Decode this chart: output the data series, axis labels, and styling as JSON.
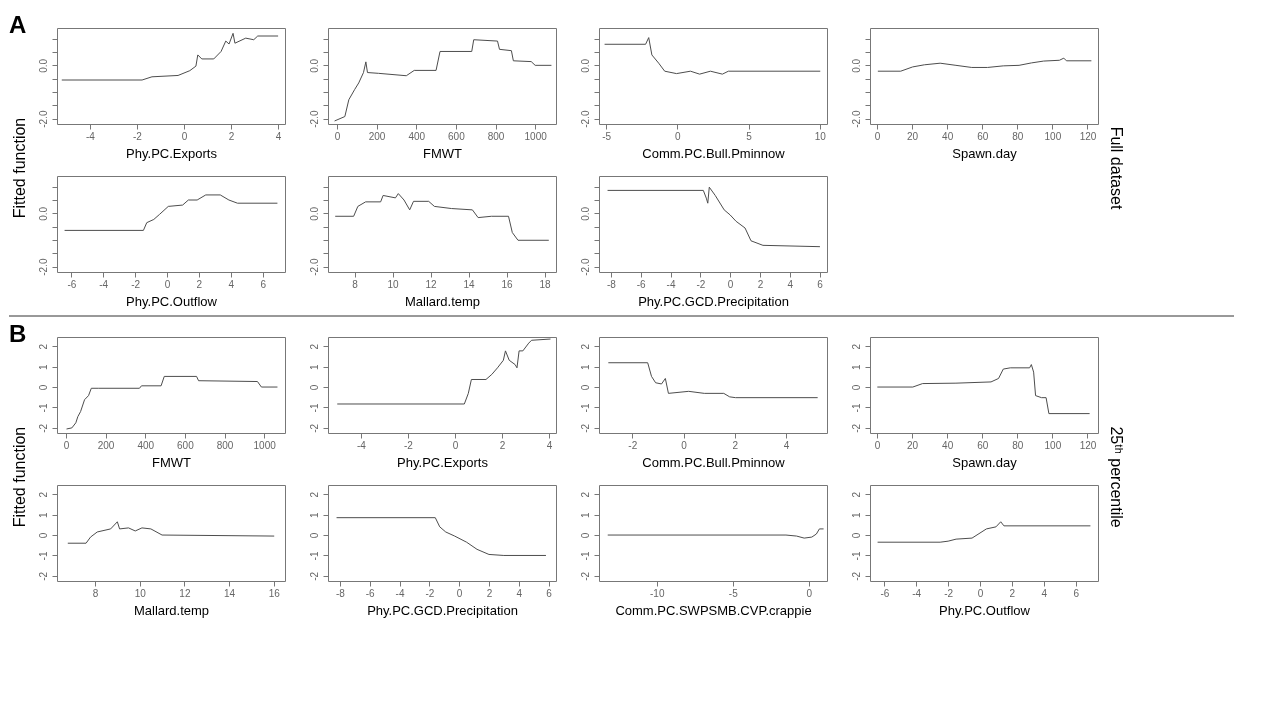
{
  "chart_data": [
    {
      "type": "line",
      "xlabel": "Phy.PC.Exports",
      "ylabel": "Fitted function",
      "annotations": [
        "A",
        "Full dataset"
      ],
      "color": "#4d4d4d",
      "xlim": [
        -5.4,
        4.3
      ],
      "xticks": [
        -4,
        -2,
        0,
        2,
        4
      ],
      "ylim": [
        -2.2,
        1.4
      ],
      "yticks": [
        {
          "value": -2,
          "label": "-2.0"
        },
        {
          "value": -1.5,
          "label": null
        },
        {
          "value": -1,
          "label": null
        },
        {
          "value": -0.5,
          "label": null
        },
        {
          "value": 0,
          "label": "0.0"
        },
        {
          "value": 0.5,
          "label": null
        },
        {
          "value": 1,
          "label": null
        }
      ],
      "grid": false,
      "x": [
        -5.18,
        -1.78,
        -1.36,
        -0.25,
        0.25,
        0.51,
        0.59,
        0.76,
        1.27,
        1.58,
        1.78,
        1.92,
        2.09,
        2.17,
        2.63,
        2.97,
        3.14,
        3.99
      ],
      "values": [
        -0.55,
        -0.55,
        -0.43,
        -0.38,
        -0.2,
        -0.03,
        0.39,
        0.24,
        0.24,
        0.52,
        0.91,
        0.8,
        1.2,
        0.83,
        1.02,
        0.96,
        1.1,
        1.1
      ]
    },
    {
      "type": "line",
      "xlabel": "FMWT",
      "color": "#4d4d4d",
      "xlim": [
        -45,
        1105
      ],
      "xticks": [
        0,
        200,
        400,
        600,
        800,
        1000
      ],
      "ylim": [
        -2.2,
        1.4
      ],
      "yticks": [
        {
          "value": -2,
          "label": "-2.0"
        },
        {
          "value": -1.5,
          "label": null
        },
        {
          "value": -1,
          "label": null
        },
        {
          "value": -0.5,
          "label": null
        },
        {
          "value": 0,
          "label": "0.0"
        },
        {
          "value": 0.5,
          "label": null
        },
        {
          "value": 1,
          "label": null
        }
      ],
      "grid": false,
      "x": [
        -10,
        40,
        60,
        90,
        110,
        134,
        146,
        154,
        210,
        350,
        390,
        500,
        520,
        680,
        690,
        810,
        820,
        880,
        890,
        980,
        1000,
        1080
      ],
      "values": [
        -2.08,
        -1.92,
        -1.29,
        -0.9,
        -0.66,
        -0.27,
        0.13,
        -0.27,
        -0.3,
        -0.39,
        -0.19,
        -0.19,
        0.52,
        0.52,
        0.96,
        0.91,
        0.6,
        0.55,
        0.17,
        0.14,
        0.0,
        0.0
      ]
    },
    {
      "type": "line",
      "xlabel": "Comm.PC.Bull.Pminnow",
      "color": "#4d4d4d",
      "xlim": [
        -5.5,
        10.5
      ],
      "xticks": [
        -5,
        0,
        5,
        10
      ],
      "ylim": [
        -2.2,
        1.4
      ],
      "yticks": [
        {
          "value": -2,
          "label": "-2.0"
        },
        {
          "value": -1.5,
          "label": null
        },
        {
          "value": -1,
          "label": null
        },
        {
          "value": -0.5,
          "label": null
        },
        {
          "value": 0,
          "label": "0.0"
        },
        {
          "value": 0.5,
          "label": null
        },
        {
          "value": 1,
          "label": null
        }
      ],
      "grid": false,
      "x": [
        -5.08,
        -2.23,
        -2.01,
        -1.79,
        -1.31,
        -0.89,
        -0.06,
        0.92,
        1.56,
        2.32,
        3.16,
        3.58,
        10.0
      ],
      "values": [
        0.79,
        0.79,
        1.04,
        0.39,
        0.08,
        -0.22,
        -0.31,
        -0.22,
        -0.33,
        -0.22,
        -0.33,
        -0.22,
        -0.22
      ]
    },
    {
      "type": "line",
      "xlabel": "Spawn.day",
      "color": "#4d4d4d",
      "xlim": [
        -4,
        126
      ],
      "xticks": [
        0,
        20,
        40,
        60,
        80,
        100,
        120
      ],
      "ylim": [
        -2.2,
        1.4
      ],
      "yticks": [
        {
          "value": -2,
          "label": "-2.0"
        },
        {
          "value": -1.5,
          "label": null
        },
        {
          "value": -1,
          "label": null
        },
        {
          "value": -0.5,
          "label": null
        },
        {
          "value": 0,
          "label": "0.0"
        },
        {
          "value": 0.5,
          "label": null
        },
        {
          "value": 1,
          "label": null
        }
      ],
      "grid": false,
      "x": [
        0.7,
        13.5,
        20.3,
        27,
        36,
        45,
        54,
        63,
        72,
        81,
        88,
        95,
        104,
        106.5,
        108,
        122
      ],
      "values": [
        -0.22,
        -0.22,
        -0.06,
        0.02,
        0.08,
        0.0,
        -0.08,
        -0.08,
        -0.02,
        0.0,
        0.09,
        0.16,
        0.19,
        0.27,
        0.17,
        0.17
      ]
    },
    {
      "type": "line",
      "xlabel": "Phy.PC.Outflow",
      "color": "#4d4d4d",
      "xlim": [
        -6.9,
        7.4
      ],
      "xticks": [
        -6,
        -4,
        -2,
        0,
        2,
        4,
        6
      ],
      "ylim": [
        -2.2,
        1.4
      ],
      "yticks": [
        {
          "value": -2,
          "label": "-2.0"
        },
        {
          "value": -1.5,
          "label": null
        },
        {
          "value": -1,
          "label": null
        },
        {
          "value": -0.5,
          "label": null
        },
        {
          "value": 0,
          "label": "0.0"
        },
        {
          "value": 0.5,
          "label": null
        },
        {
          "value": 1,
          "label": null
        }
      ],
      "grid": false,
      "x": [
        -6.4,
        -1.48,
        -1.27,
        -0.83,
        -0.47,
        0.08,
        0.98,
        1.34,
        1.89,
        2.43,
        3.34,
        3.88,
        4.42,
        6.9
      ],
      "values": [
        -0.64,
        -0.64,
        -0.35,
        -0.23,
        -0.04,
        0.26,
        0.31,
        0.5,
        0.5,
        0.69,
        0.69,
        0.5,
        0.38,
        0.38
      ]
    },
    {
      "type": "line",
      "xlabel": "Mallard.temp",
      "color": "#4d4d4d",
      "xlim": [
        6.6,
        18.6
      ],
      "xticks": [
        8,
        10,
        12,
        14,
        16,
        18
      ],
      "ylim": [
        -2.2,
        1.4
      ],
      "yticks": [
        {
          "value": -2,
          "label": "-2.0"
        },
        {
          "value": -1.5,
          "label": null
        },
        {
          "value": -1,
          "label": null
        },
        {
          "value": -0.5,
          "label": null
        },
        {
          "value": 0,
          "label": "0.0"
        },
        {
          "value": 0.5,
          "label": null
        },
        {
          "value": 1,
          "label": null
        }
      ],
      "grid": false,
      "x": [
        7.0,
        7.95,
        8.17,
        8.58,
        9.37,
        9.5,
        10.15,
        10.3,
        10.6,
        10.9,
        11.1,
        11.9,
        12.2,
        13.1,
        14.2,
        14.5,
        15.2,
        16.1,
        16.3,
        16.6,
        18.2
      ],
      "values": [
        -0.11,
        -0.11,
        0.26,
        0.43,
        0.43,
        0.67,
        0.58,
        0.74,
        0.5,
        0.13,
        0.45,
        0.45,
        0.26,
        0.18,
        0.13,
        -0.16,
        -0.11,
        -0.11,
        -0.72,
        -1.01,
        -1.01
      ]
    },
    {
      "type": "line",
      "xlabel": "Phy.PC.GCD.Precipitation",
      "color": "#4d4d4d",
      "xlim": [
        -8.8,
        6.5
      ],
      "xticks": [
        -8,
        -6,
        -4,
        -2,
        0,
        2,
        4,
        6
      ],
      "ylim": [
        -2.2,
        1.4
      ],
      "yticks": [
        {
          "value": -2,
          "label": "-2.0"
        },
        {
          "value": -1.5,
          "label": null
        },
        {
          "value": -1,
          "label": null
        },
        {
          "value": -0.5,
          "label": null
        },
        {
          "value": 0,
          "label": "0.0"
        },
        {
          "value": 0.5,
          "label": null
        },
        {
          "value": 1,
          "label": null
        }
      ],
      "grid": false,
      "x": [
        -8.2,
        -1.8,
        -1.6,
        -1.5,
        -1.4,
        -1.0,
        -0.4,
        0.0,
        0.4,
        1.0,
        1.4,
        2.2,
        6.0
      ],
      "values": [
        0.86,
        0.86,
        0.57,
        0.38,
        0.98,
        0.67,
        0.13,
        -0.06,
        -0.3,
        -0.55,
        -1.03,
        -1.2,
        -1.25
      ]
    },
    {
      "type": "line",
      "xlabel": "FMWT",
      "ylabel": "Fitted function",
      "annotations": [
        "B",
        "25ᵗʰ percentile"
      ],
      "color": "#4d4d4d",
      "xlim": [
        -45,
        1105
      ],
      "xticks": [
        0,
        200,
        400,
        600,
        800,
        1000
      ],
      "ylim": [
        -2.25,
        2.45
      ],
      "yticks": [
        -2,
        -1,
        0,
        1,
        2
      ],
      "grid": false,
      "x": [
        5,
        30,
        50,
        60,
        74,
        94,
        114,
        128,
        163,
        371,
        381,
        480,
        496,
        659,
        669,
        966,
        986,
        1065
      ],
      "values": [
        -2.05,
        -2.0,
        -1.75,
        -1.45,
        -1.2,
        -0.62,
        -0.42,
        -0.06,
        -0.06,
        -0.06,
        0.06,
        0.06,
        0.52,
        0.52,
        0.31,
        0.27,
        0.0,
        0.0
      ]
    },
    {
      "type": "line",
      "xlabel": "Phy.PC.Exports",
      "color": "#4d4d4d",
      "xlim": [
        -5.4,
        4.3
      ],
      "xticks": [
        -4,
        -2,
        0,
        2,
        4
      ],
      "ylim": [
        -2.25,
        2.45
      ],
      "yticks": [
        -2,
        -1,
        0,
        1,
        2
      ],
      "grid": false,
      "x": [
        -4.99,
        0.4,
        0.57,
        0.7,
        1.32,
        1.57,
        1.81,
        2.06,
        2.15,
        2.31,
        2.56,
        2.64,
        2.73,
        2.89,
        3.14,
        3.26,
        4.05
      ],
      "values": [
        -0.83,
        -0.83,
        -0.31,
        0.37,
        0.37,
        0.62,
        0.94,
        1.31,
        1.77,
        1.31,
        1.1,
        0.94,
        1.77,
        1.77,
        2.15,
        2.29,
        2.35
      ]
    },
    {
      "type": "line",
      "xlabel": "Comm.PC.Bull.Pminnow",
      "color": "#4d4d4d",
      "xlim": [
        -3.3,
        5.6
      ],
      "xticks": [
        -2,
        0,
        2,
        4
      ],
      "ylim": [
        -2.25,
        2.45
      ],
      "yticks": [
        -2,
        -1,
        0,
        1,
        2
      ],
      "grid": false,
      "x": [
        -2.92,
        -1.4,
        -1.25,
        -1.09,
        -0.86,
        -0.71,
        -0.59,
        0.2,
        0.81,
        1.57,
        1.8,
        2.03,
        5.22
      ],
      "values": [
        1.19,
        1.19,
        0.52,
        0.21,
        0.15,
        0.42,
        -0.31,
        -0.21,
        -0.31,
        -0.31,
        -0.48,
        -0.52,
        -0.52
      ]
    },
    {
      "type": "line",
      "xlabel": "Spawn.day",
      "color": "#4d4d4d",
      "xlim": [
        -4,
        126
      ],
      "xticks": [
        0,
        20,
        40,
        60,
        80,
        100,
        120
      ],
      "ylim": [
        -2.25,
        2.45
      ],
      "yticks": [
        -2,
        -1,
        0,
        1,
        2
      ],
      "grid": false,
      "x": [
        0.4,
        20.4,
        26,
        45,
        65,
        69.3,
        72,
        76,
        87,
        88,
        89.3,
        90.4,
        93.8,
        96.4,
        98,
        121
      ],
      "values": [
        0.0,
        0.0,
        0.17,
        0.19,
        0.25,
        0.42,
        0.88,
        0.94,
        0.94,
        1.1,
        0.73,
        -0.42,
        -0.52,
        -0.52,
        -1.3,
        -1.3
      ]
    },
    {
      "type": "line",
      "xlabel": "Mallard.temp",
      "color": "#4d4d4d",
      "xlim": [
        6.3,
        16.5
      ],
      "xticks": [
        8,
        10,
        12,
        14,
        16
      ],
      "ylim": [
        -2.25,
        2.45
      ],
      "yticks": [
        -2,
        -1,
        0,
        1,
        2
      ],
      "grid": false,
      "x": [
        6.8,
        7.6,
        7.8,
        8.1,
        8.7,
        9.0,
        9.1,
        9.5,
        9.8,
        10.1,
        10.5,
        11.0,
        16.0
      ],
      "values": [
        -0.4,
        -0.4,
        -0.1,
        0.15,
        0.3,
        0.65,
        0.3,
        0.35,
        0.2,
        0.35,
        0.3,
        0.0,
        -0.05
      ]
    },
    {
      "type": "line",
      "xlabel": "Phy.PC.GCD.Precipitation",
      "color": "#4d4d4d",
      "xlim": [
        -8.8,
        6.5
      ],
      "xticks": [
        -8,
        -6,
        -4,
        -2,
        0,
        2,
        4,
        6
      ],
      "ylim": [
        -2.25,
        2.45
      ],
      "yticks": [
        -2,
        -1,
        0,
        1,
        2
      ],
      "grid": false,
      "x": [
        -8.2,
        -1.6,
        -1.3,
        -0.9,
        -0.3,
        0.5,
        1.2,
        2.0,
        3.0,
        5.8
      ],
      "values": [
        0.85,
        0.85,
        0.4,
        0.15,
        -0.05,
        -0.35,
        -0.7,
        -0.95,
        -1.0,
        -1.0
      ]
    },
    {
      "type": "line",
      "xlabel": "Comm.PC.SWPSMB.CVP.crappie",
      "color": "#4d4d4d",
      "xlim": [
        -13.8,
        1.2
      ],
      "xticks": [
        -10,
        -5,
        0
      ],
      "ylim": [
        -2.25,
        2.45
      ],
      "yticks": [
        -2,
        -1,
        0,
        1,
        2
      ],
      "grid": false,
      "x": [
        -13.2,
        -1.5,
        -0.8,
        -0.3,
        0.2,
        0.5,
        0.7,
        0.95
      ],
      "values": [
        0.0,
        0.0,
        -0.05,
        -0.15,
        -0.1,
        0.05,
        0.3,
        0.3
      ]
    },
    {
      "type": "line",
      "xlabel": "Phy.PC.Outflow",
      "color": "#4d4d4d",
      "xlim": [
        -6.9,
        7.4
      ],
      "xticks": [
        -6,
        -4,
        -2,
        0,
        2,
        4,
        6
      ],
      "ylim": [
        -2.25,
        2.45
      ],
      "yticks": [
        -2,
        -1,
        0,
        1,
        2
      ],
      "grid": false,
      "x": [
        -6.4,
        -2.5,
        -2.0,
        -1.5,
        -0.5,
        0.0,
        0.4,
        1.0,
        1.3,
        1.5,
        6.9
      ],
      "values": [
        -0.35,
        -0.35,
        -0.3,
        -0.2,
        -0.15,
        0.1,
        0.3,
        0.4,
        0.65,
        0.45,
        0.45
      ]
    }
  ]
}
